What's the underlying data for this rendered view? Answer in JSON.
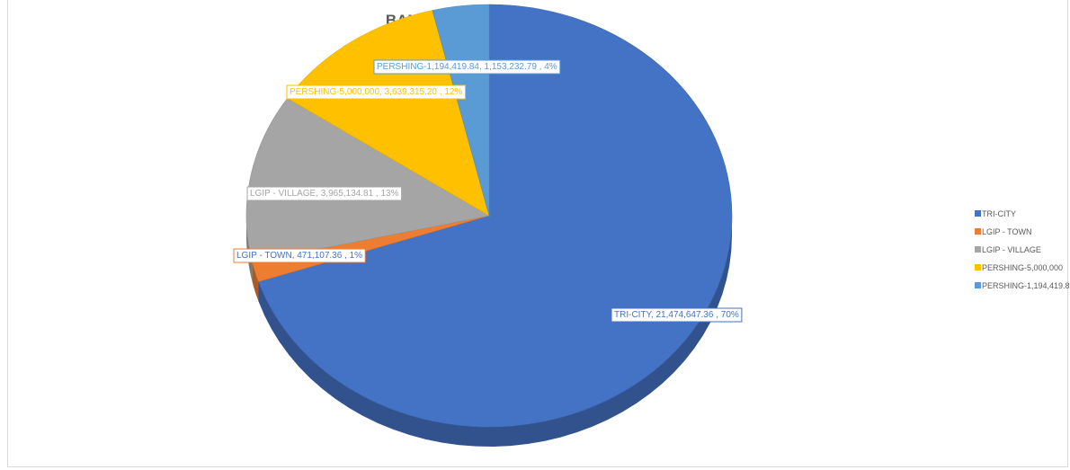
{
  "chart_data": {
    "type": "pie",
    "title": "BANK BALANCES",
    "three_d": true,
    "legend_position": "right",
    "slices": [
      {
        "name": "TRI-CITY",
        "value": 21474647.36,
        "percent": 70,
        "color": "#4472C4",
        "label": "TRI-CITY, 21,474,647.36 , 70%"
      },
      {
        "name": "LGIP - TOWN",
        "value": 471107.36,
        "percent": 1,
        "color": "#ED7D31",
        "label": "LGIP - TOWN, 471,107.36 , 1%"
      },
      {
        "name": "LGIP - VILLAGE",
        "value": 3965134.81,
        "percent": 13,
        "color": "#A5A5A5",
        "label": "LGIP - VILLAGE, 3,965,134.81 , 13%"
      },
      {
        "name": "PERSHING-5,000,000",
        "value": 3639315.2,
        "percent": 12,
        "color": "#FFC000",
        "label": "PERSHING-5,000,000, 3,639,315.20 , 12%"
      },
      {
        "name": "PERSHING-1,194,419.84",
        "value": 1153232.79,
        "percent": 4,
        "color": "#5B9BD5",
        "label": "PERSHING-1,194,419.84, 1,153,232.79 , 4%"
      }
    ]
  }
}
